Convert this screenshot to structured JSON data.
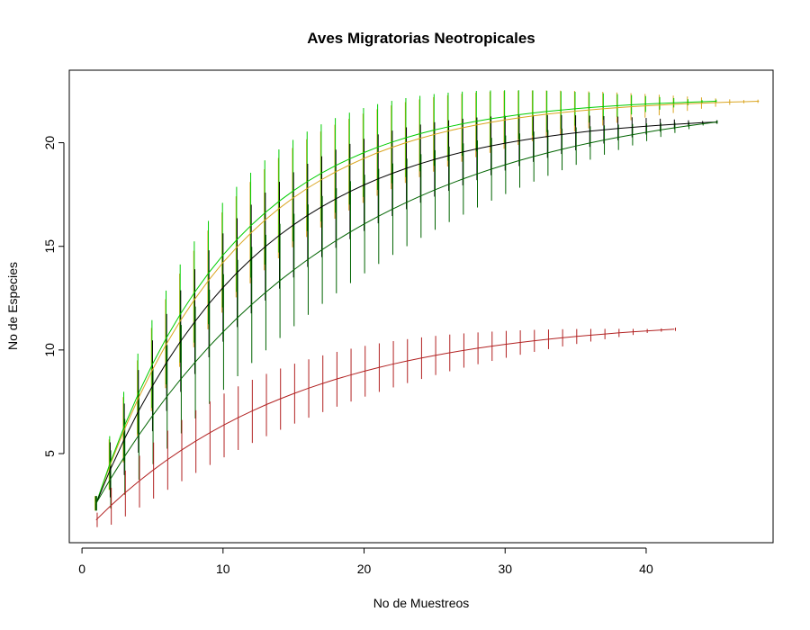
{
  "chart_data": {
    "type": "line",
    "title": "Aves Migratorias Neotropicales",
    "xlabel": "No de Muestreos",
    "ylabel": "No de Especies",
    "xlim": [
      -0.9,
      49.0
    ],
    "ylim": [
      0.7,
      23.5
    ],
    "x_ticks": [
      "0",
      "10",
      "20",
      "30",
      "40"
    ],
    "y_ticks": [
      "5",
      "10",
      "15",
      "20"
    ],
    "grid": false,
    "legend": "none",
    "error_bars": true,
    "series": [
      {
        "color": "#DAA520",
        "n": 48,
        "y_start": 2.6,
        "y_end": 22.0,
        "k": 0.1,
        "sd_max": 2.4
      },
      {
        "color": "#00CD00",
        "n": 45,
        "y_start": 2.6,
        "y_end": 22.0,
        "k": 0.105,
        "sd_max": 2.5
      },
      {
        "color": "#000000",
        "n": 45,
        "y_start": 2.6,
        "y_end": 21.0,
        "k": 0.09,
        "sd_max": 2.6
      },
      {
        "color": "#006400",
        "n": 45,
        "y_start": 2.6,
        "y_end": 21.0,
        "k": 0.06,
        "sd_max": 2.8
      },
      {
        "color": "#B22222",
        "n": 42,
        "y_start": 1.8,
        "y_end": 11.0,
        "k": 0.07,
        "sd_max": 1.4
      }
    ]
  }
}
